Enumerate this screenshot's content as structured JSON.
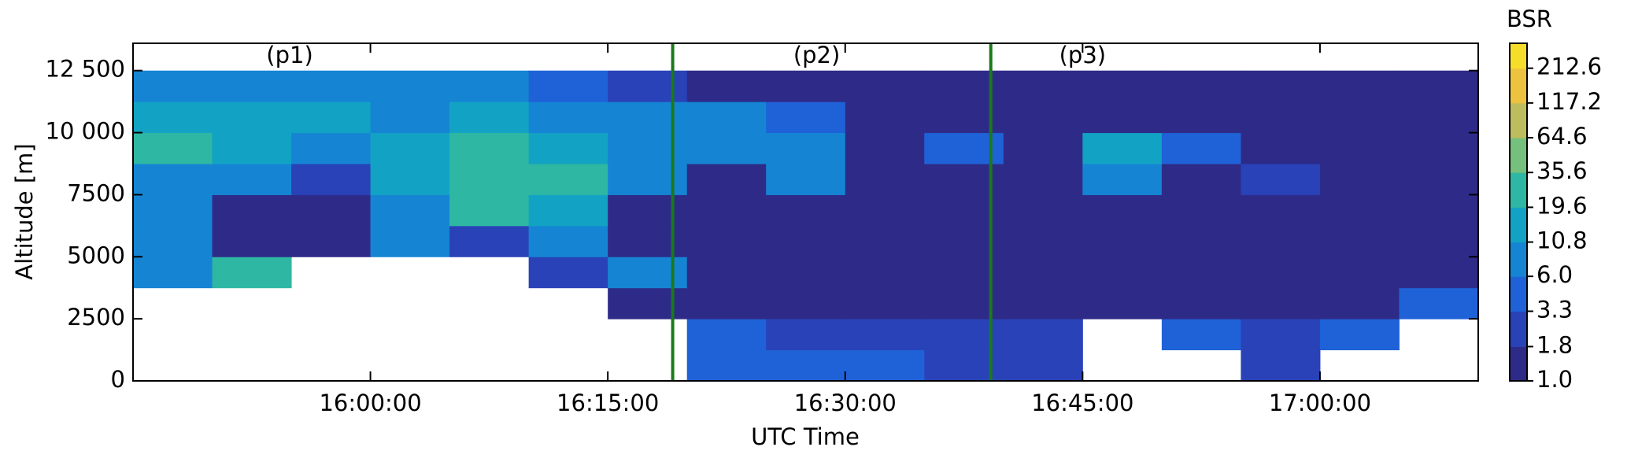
{
  "chart_data": {
    "type": "heatmap",
    "xlabel": "UTC Time",
    "ylabel": "Altitude [m]",
    "colorbar_label": "BSR",
    "xlim": [
      945,
      1030
    ],
    "ylim": [
      0,
      13600
    ],
    "xticks": [
      {
        "value": 960,
        "label": "16:00:00"
      },
      {
        "value": 975,
        "label": "16:15:00"
      },
      {
        "value": 990,
        "label": "16:30:00"
      },
      {
        "value": 1005,
        "label": "16:45:00"
      },
      {
        "value": 1020,
        "label": "17:00:00"
      }
    ],
    "yticks": [
      0,
      2500,
      5000,
      7500,
      {
        "value": 10000,
        "label": "10 000"
      },
      {
        "value": 12500,
        "label": "12 500"
      }
    ],
    "x_edges": [
      945,
      950,
      955,
      960,
      965,
      970,
      975,
      980,
      985,
      990,
      995,
      1000,
      1005,
      1010,
      1015,
      1020,
      1025,
      1030
    ],
    "y_edges": [
      0,
      1250,
      2500,
      3750,
      5000,
      6250,
      7500,
      8750,
      10000,
      11250,
      12500
    ],
    "z": [
      [
        null,
        null,
        null,
        null,
        null,
        null,
        null,
        3.3,
        3.3,
        3.3,
        2,
        2,
        null,
        null,
        3,
        null,
        null
      ],
      [
        null,
        null,
        null,
        null,
        null,
        null,
        null,
        3.3,
        3,
        2.5,
        2.5,
        2.5,
        null,
        4,
        3,
        5,
        null
      ],
      [
        null,
        null,
        null,
        null,
        null,
        null,
        1.5,
        1,
        1,
        1,
        1,
        1,
        1,
        1,
        1,
        1,
        4
      ],
      [
        8,
        20,
        null,
        null,
        null,
        3,
        6,
        1.2,
        1,
        1,
        1,
        1,
        1,
        1,
        1,
        1,
        1
      ],
      [
        6,
        1.2,
        1.2,
        8,
        3,
        10,
        1.5,
        1,
        1,
        1,
        1,
        1,
        1,
        1,
        1,
        1,
        1
      ],
      [
        6,
        1.2,
        1.2,
        10,
        20,
        15,
        1.2,
        1,
        1,
        1,
        1,
        1,
        1,
        1,
        1,
        1,
        1
      ],
      [
        10,
        6,
        3,
        15,
        20,
        20,
        8,
        1,
        10,
        1,
        1,
        1,
        10,
        1,
        3,
        1,
        1
      ],
      [
        20,
        15,
        10,
        15,
        25,
        15,
        10,
        8,
        10,
        1,
        4,
        1,
        15,
        4,
        1,
        1,
        1
      ],
      [
        15,
        12,
        15,
        10,
        12,
        10,
        8,
        6,
        4,
        1,
        1,
        1,
        1,
        1,
        1,
        1,
        1
      ],
      [
        8,
        10,
        8,
        8,
        6,
        4,
        3,
        1.5,
        1,
        1,
        1,
        1,
        1,
        1,
        1,
        1,
        1
      ]
    ],
    "clim": [
      1,
      326
    ],
    "color_log": true,
    "cticks": [
      {
        "value": 1,
        "label": "1.0"
      },
      1.8,
      3.3,
      {
        "value": 6,
        "label": "6.0"
      },
      10.8,
      19.6,
      35.6,
      64.6,
      117.2,
      212.6
    ],
    "colormap": [
      "#2e2b88",
      "#2942b8",
      "#1f62d8",
      "#1585d3",
      "#12a3c4",
      "#2eb7a3",
      "#75c07c",
      "#bdbd5e",
      "#ecc23f",
      "#f6dd2a",
      "#f9f719"
    ],
    "vlines": [
      979.1,
      999.2
    ],
    "vline_color": "#1a7a1a",
    "annotations": [
      {
        "text": "(p1)",
        "x": 954.9
      },
      {
        "text": "(p2)",
        "x": 988.2
      },
      {
        "text": "(p3)",
        "x": 1005
      }
    ]
  }
}
